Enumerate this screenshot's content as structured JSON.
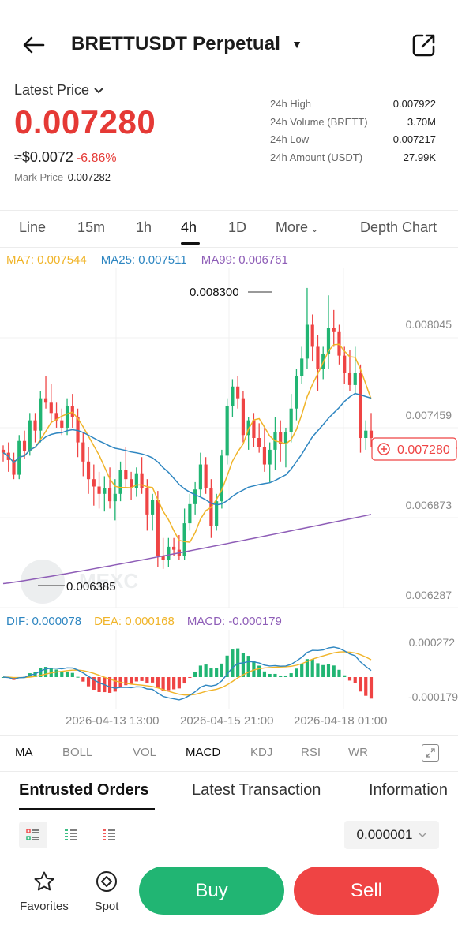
{
  "header": {
    "title": "BRETTUSDT Perpetual"
  },
  "price": {
    "latest_label": "Latest Price",
    "latest": "0.007280",
    "approx": "≈$0.0072",
    "change": "-6.86%",
    "mark_label": "Mark Price",
    "mark_value": "0.007282"
  },
  "stats": [
    {
      "label": "24h High",
      "value": "0.007922"
    },
    {
      "label": "24h Volume (BRETT)",
      "value": "3.70M"
    },
    {
      "label": "24h Low",
      "value": "0.007217"
    },
    {
      "label": "24h Amount (USDT)",
      "value": "27.99K"
    }
  ],
  "tabs": {
    "line": "Line",
    "m15": "15m",
    "h1": "1h",
    "h4": "4h",
    "d1": "1D",
    "more": "More",
    "depth": "Depth Chart",
    "active": "4h"
  },
  "ma_legend": {
    "ma7": "MA7: 0.007544",
    "ma25": "MA25: 0.007511",
    "ma99": "MA99: 0.006761"
  },
  "chart": {
    "y_labels": [
      "0.008045",
      "0.007459",
      "0.006873",
      "0.006287"
    ],
    "high_label": "0.008300",
    "low_label": "0.006385",
    "current_label": "0.007280",
    "watermark": "MEXC",
    "macd_y_labels": [
      "0.000272",
      "-0.000179"
    ],
    "x_labels": [
      "2026-04-13 13:00",
      "2026-04-15 21:00",
      "2026-04-18 01:00"
    ]
  },
  "macd_legend": {
    "dif": "DIF: 0.000078",
    "dea": "DEA: 0.000168",
    "macd": "MACD: -0.000179"
  },
  "indicators": [
    "MA",
    "BOLL",
    "VOL",
    "MACD",
    "KDJ",
    "RSI",
    "WR"
  ],
  "orders_tabs": [
    "Entrusted Orders",
    "Latest Transaction",
    "Information"
  ],
  "precision": "0.000001",
  "bottom": {
    "favorites": "Favorites",
    "spot": "Spot",
    "buy": "Buy",
    "sell": "Sell"
  },
  "colors": {
    "up": "#21b573",
    "down": "#ef4444",
    "ma7": "#f0b429",
    "ma25": "#2e86c1",
    "ma99": "#8e5db7"
  },
  "chart_data": {
    "type": "candlestick",
    "y_range": [
      0.00618,
      0.00838
    ],
    "candles": [
      [
        0.0072,
        0.00723,
        0.00712,
        0.00718
      ],
      [
        0.00718,
        0.00725,
        0.00705,
        0.00713
      ],
      [
        0.00713,
        0.00718,
        0.007,
        0.00703
      ],
      [
        0.00703,
        0.0073,
        0.007,
        0.00726
      ],
      [
        0.00726,
        0.00733,
        0.00714,
        0.00719
      ],
      [
        0.00719,
        0.00745,
        0.00716,
        0.0074
      ],
      [
        0.0074,
        0.00745,
        0.00725,
        0.00733
      ],
      [
        0.00733,
        0.0076,
        0.00725,
        0.00755
      ],
      [
        0.00755,
        0.0077,
        0.00748,
        0.00752
      ],
      [
        0.00752,
        0.00765,
        0.00738,
        0.00745
      ],
      [
        0.00745,
        0.00752,
        0.00735,
        0.0074
      ],
      [
        0.0074,
        0.00748,
        0.0073,
        0.00735
      ],
      [
        0.00735,
        0.00755,
        0.0073,
        0.0075
      ],
      [
        0.0075,
        0.00758,
        0.00735,
        0.00742
      ],
      [
        0.00742,
        0.00748,
        0.00715,
        0.00725
      ],
      [
        0.00725,
        0.00732,
        0.00702,
        0.00712
      ],
      [
        0.00712,
        0.00722,
        0.0069,
        0.007
      ],
      [
        0.007,
        0.0071,
        0.00682,
        0.00695
      ],
      [
        0.00695,
        0.00705,
        0.0068,
        0.0069
      ],
      [
        0.0069,
        0.00702,
        0.00678,
        0.00694
      ],
      [
        0.00694,
        0.00708,
        0.0068,
        0.00685
      ],
      [
        0.00685,
        0.007,
        0.00672,
        0.0069
      ],
      [
        0.0069,
        0.00712,
        0.00685,
        0.00706
      ],
      [
        0.00706,
        0.00722,
        0.00694,
        0.007
      ],
      [
        0.007,
        0.00705,
        0.00686,
        0.00694
      ],
      [
        0.00694,
        0.00708,
        0.00688,
        0.00704
      ],
      [
        0.00704,
        0.00715,
        0.0069,
        0.00694
      ],
      [
        0.00694,
        0.007,
        0.00665,
        0.00676
      ],
      [
        0.00676,
        0.0069,
        0.00665,
        0.00686
      ],
      [
        0.00686,
        0.00692,
        0.0064,
        0.00648
      ],
      [
        0.00648,
        0.0066,
        0.00639,
        0.00645
      ],
      [
        0.00645,
        0.0066,
        0.0064,
        0.00654
      ],
      [
        0.00654,
        0.0066,
        0.00648,
        0.00652
      ],
      [
        0.00652,
        0.00662,
        0.00645,
        0.00648
      ],
      [
        0.00648,
        0.0068,
        0.00645,
        0.0067
      ],
      [
        0.0067,
        0.0069,
        0.00665,
        0.00683
      ],
      [
        0.00683,
        0.00698,
        0.00676,
        0.00693
      ],
      [
        0.00693,
        0.00718,
        0.00688,
        0.0071
      ],
      [
        0.0071,
        0.00715,
        0.0069,
        0.00694
      ],
      [
        0.00694,
        0.007,
        0.0066,
        0.00668
      ],
      [
        0.00668,
        0.0069,
        0.00665,
        0.00685
      ],
      [
        0.00685,
        0.0072,
        0.0068,
        0.00716
      ],
      [
        0.00716,
        0.00755,
        0.0071,
        0.0075
      ],
      [
        0.0075,
        0.00768,
        0.00742,
        0.00763
      ],
      [
        0.00763,
        0.0077,
        0.00748,
        0.00755
      ],
      [
        0.00755,
        0.0076,
        0.00725,
        0.0073
      ],
      [
        0.0073,
        0.00742,
        0.0072,
        0.0074
      ],
      [
        0.0074,
        0.00745,
        0.00722,
        0.00728
      ],
      [
        0.00728,
        0.00738,
        0.00718,
        0.00722
      ],
      [
        0.00722,
        0.00735,
        0.00705,
        0.0071
      ],
      [
        0.0071,
        0.00725,
        0.00698,
        0.0072
      ],
      [
        0.0072,
        0.00742,
        0.00706,
        0.00732
      ],
      [
        0.00732,
        0.0074,
        0.00712,
        0.00724
      ],
      [
        0.00724,
        0.00735,
        0.00708,
        0.00732
      ],
      [
        0.00732,
        0.00758,
        0.00725,
        0.00748
      ],
      [
        0.00748,
        0.00775,
        0.0074,
        0.0077
      ],
      [
        0.0077,
        0.0079,
        0.00765,
        0.00782
      ],
      [
        0.00782,
        0.0083,
        0.00775,
        0.00805
      ],
      [
        0.00805,
        0.00812,
        0.0078,
        0.0079
      ],
      [
        0.0079,
        0.00798,
        0.0076,
        0.00775
      ],
      [
        0.00775,
        0.0079,
        0.00768,
        0.00785
      ],
      [
        0.00785,
        0.00825,
        0.00775,
        0.00803
      ],
      [
        0.00803,
        0.00815,
        0.0079,
        0.008
      ],
      [
        0.008,
        0.00805,
        0.00778,
        0.00784
      ],
      [
        0.00784,
        0.0079,
        0.00765,
        0.00772
      ],
      [
        0.00772,
        0.00788,
        0.0076,
        0.00764
      ],
      [
        0.00764,
        0.0079,
        0.00758,
        0.00772
      ],
      [
        0.00772,
        0.00778,
        0.00718,
        0.00728
      ],
      [
        0.00728,
        0.0074,
        0.0072,
        0.00733
      ],
      [
        0.00733,
        0.00745,
        0.00722,
        0.00728
      ]
    ]
  }
}
